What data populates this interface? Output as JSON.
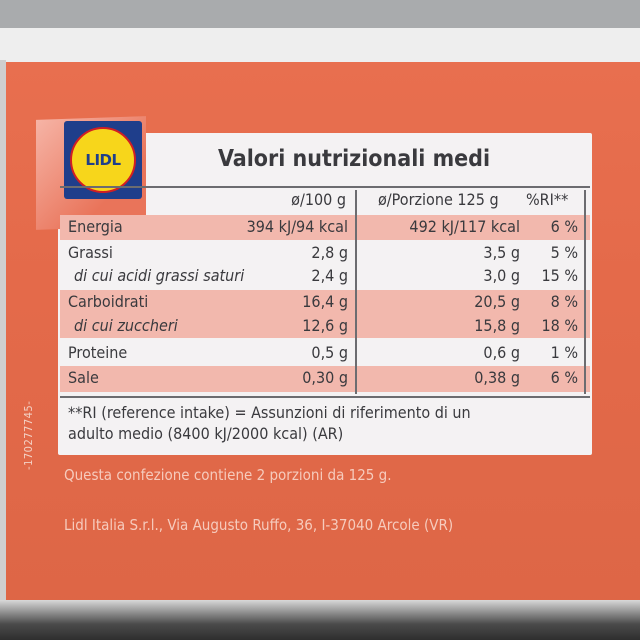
{
  "logo": {
    "text": "LIDL"
  },
  "panel": {
    "title": "Valori nutrizionali medi",
    "headers": {
      "per100": "ø/100 g",
      "perPortion": "ø/Porzione 125 g",
      "ri": "%RI**"
    },
    "rows": [
      {
        "label": "Energia",
        "per100": "394 kJ/94 kcal",
        "portion": "492 kJ/117 kcal",
        "ri": "6 %"
      },
      {
        "label": "Grassi",
        "per100": "2,8 g",
        "portion": "3,5 g",
        "ri": "5 %"
      },
      {
        "label": "di cui acidi grassi saturi",
        "per100": "2,4 g",
        "portion": "3,0 g",
        "ri": "15 %"
      },
      {
        "label": "Carboidrati",
        "per100": "16,4 g",
        "portion": "20,5 g",
        "ri": "8 %"
      },
      {
        "label": "di cui zuccheri",
        "per100": "12,6 g",
        "portion": "15,8 g",
        "ri": "18 %"
      },
      {
        "label": "Proteine",
        "per100": "0,5 g",
        "portion": "0,6 g",
        "ri": "1 %"
      },
      {
        "label": "Sale",
        "per100": "0,30 g",
        "portion": "0,38 g",
        "ri": "6 %"
      }
    ],
    "footnote_line1": "**RI (reference intake) = Assunzioni di riferimento di un",
    "footnote_line2": "adulto medio (8400 kJ/2000 kcal) (AR)"
  },
  "package": {
    "portions_note": "Questa confezione contiene 2 porzioni da 125 g.",
    "address": "Lidl Italia S.r.l., Via Augusto Ruffo, 36, I-37040 Arcole (VR)",
    "code": "-170277745-"
  },
  "colors": {
    "pack_red": "#e46a4a",
    "band_pink": "#f2b8ad",
    "panel_bg": "#f4f2f3",
    "text": "#3a3a3e"
  }
}
